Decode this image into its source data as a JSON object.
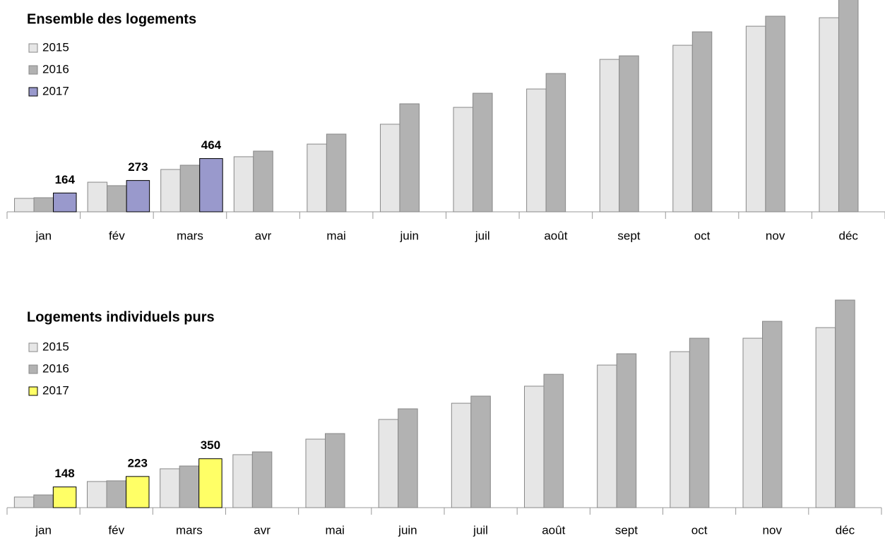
{
  "chart_data": [
    {
      "type": "bar",
      "title": "Ensemble des logements",
      "categories": [
        "jan",
        "fév",
        "mars",
        "avr",
        "mai",
        "juin",
        "juil",
        "août",
        "sept",
        "oct",
        "nov",
        "déc"
      ],
      "series": [
        {
          "name": "2015",
          "color": "#e6e6e6",
          "values": [
            117,
            258,
            369,
            480,
            590,
            763,
            910,
            1070,
            1328,
            1451,
            1617,
            1691
          ]
        },
        {
          "name": "2016",
          "color": "#b2b2b2",
          "values": [
            123,
            228,
            406,
            529,
            677,
            941,
            1033,
            1205,
            1359,
            1568,
            1704,
            1876
          ]
        },
        {
          "name": "2017",
          "color": "#9999cc",
          "values": [
            164,
            273,
            464,
            null,
            null,
            null,
            null,
            null,
            null,
            null,
            null,
            null
          ]
        }
      ]
    },
    {
      "type": "bar",
      "title": "Logements individuels purs",
      "categories": [
        "jan",
        "fév",
        "mars",
        "avr",
        "mai",
        "juin",
        "juil",
        "août",
        "sept",
        "oct",
        "nov",
        "déc"
      ],
      "series": [
        {
          "name": "2015",
          "color": "#e6e6e6",
          "values": [
            76,
            187,
            278,
            379,
            490,
            631,
            747,
            869,
            1020,
            1116,
            1212,
            1288
          ]
        },
        {
          "name": "2016",
          "color": "#b2b2b2",
          "values": [
            91,
            192,
            298,
            399,
            530,
            707,
            798,
            954,
            1101,
            1212,
            1333,
            1485
          ]
        },
        {
          "name": "2017",
          "color": "#ffff66",
          "values": [
            148,
            223,
            350,
            null,
            null,
            null,
            null,
            null,
            null,
            null,
            null,
            null
          ]
        }
      ]
    }
  ]
}
